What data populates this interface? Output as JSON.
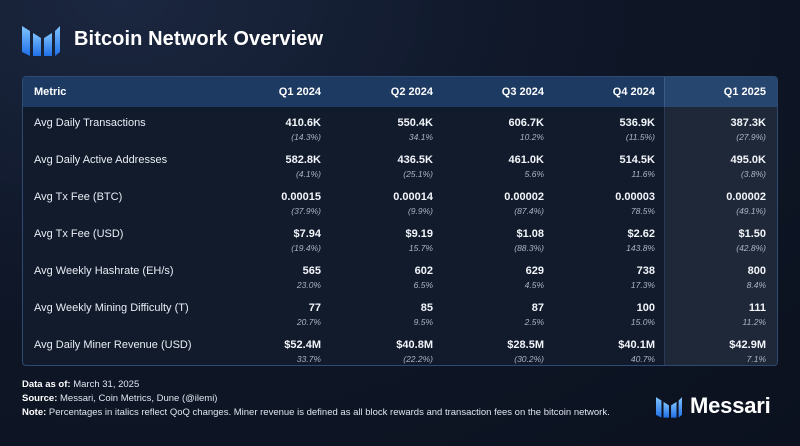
{
  "header": {
    "title": "Bitcoin Network Overview",
    "logo_icon": "messari-logo-icon"
  },
  "table": {
    "columns": [
      "Metric",
      "Q1 2024",
      "Q2 2024",
      "Q3 2024",
      "Q4 2024",
      "Q1 2025"
    ],
    "rows": [
      {
        "metric": "Avg Daily Transactions",
        "values": [
          "410.6K",
          "550.4K",
          "606.7K",
          "536.9K",
          "387.3K"
        ],
        "changes": [
          "(14.3%)",
          "34.1%",
          "10.2%",
          "(11.5%)",
          "(27.9%)"
        ]
      },
      {
        "metric": "Avg Daily Active Addresses",
        "values": [
          "582.8K",
          "436.5K",
          "461.0K",
          "514.5K",
          "495.0K"
        ],
        "changes": [
          "(4.1%)",
          "(25.1%)",
          "5.6%",
          "11.6%",
          "(3.8%)"
        ]
      },
      {
        "metric": "Avg Tx Fee (BTC)",
        "values": [
          "0.00015",
          "0.00014",
          "0.00002",
          "0.00003",
          "0.00002"
        ],
        "changes": [
          "(37.9%)",
          "(9.9%)",
          "(87.4%)",
          "78.5%",
          "(49.1%)"
        ]
      },
      {
        "metric": "Avg Tx Fee (USD)",
        "values": [
          "$7.94",
          "$9.19",
          "$1.08",
          "$2.62",
          "$1.50"
        ],
        "changes": [
          "(19.4%)",
          "15.7%",
          "(88.3%)",
          "143.8%",
          "(42.8%)"
        ]
      },
      {
        "metric": "Avg Weekly Hashrate (EH/s)",
        "values": [
          "565",
          "602",
          "629",
          "738",
          "800"
        ],
        "changes": [
          "23.0%",
          "6.5%",
          "4.5%",
          "17.3%",
          "8.4%"
        ]
      },
      {
        "metric": "Avg Weekly Mining Difficulty (T)",
        "values": [
          "77",
          "85",
          "87",
          "100",
          "111"
        ],
        "changes": [
          "20.7%",
          "9.5%",
          "2.5%",
          "15.0%",
          "11.2%"
        ]
      },
      {
        "metric": "Avg Daily Miner Revenue (USD)",
        "values": [
          "$52.4M",
          "$40.8M",
          "$28.5M",
          "$40.1M",
          "$42.9M"
        ],
        "changes": [
          "33.7%",
          "(22.2%)",
          "(30.2%)",
          "40.7%",
          "7.1%"
        ]
      }
    ]
  },
  "footer": {
    "data_as_of_label": "Data as of:",
    "data_as_of_value": "March 31, 2025",
    "source_label": "Source:",
    "source_value": "Messari, Coin Metrics, Dune (@ilemi)",
    "note_label": "Note:",
    "note_value": "Percentages in italics reflect QoQ changes. Miner revenue is defined as all block rewards and transaction fees on the bitcoin network."
  },
  "brand": {
    "name": "Messari",
    "icon": "messari-logo-icon"
  },
  "colors": {
    "background": "#0e1524",
    "header_row": "#1d3a62",
    "accent": "#2f7cf6"
  }
}
